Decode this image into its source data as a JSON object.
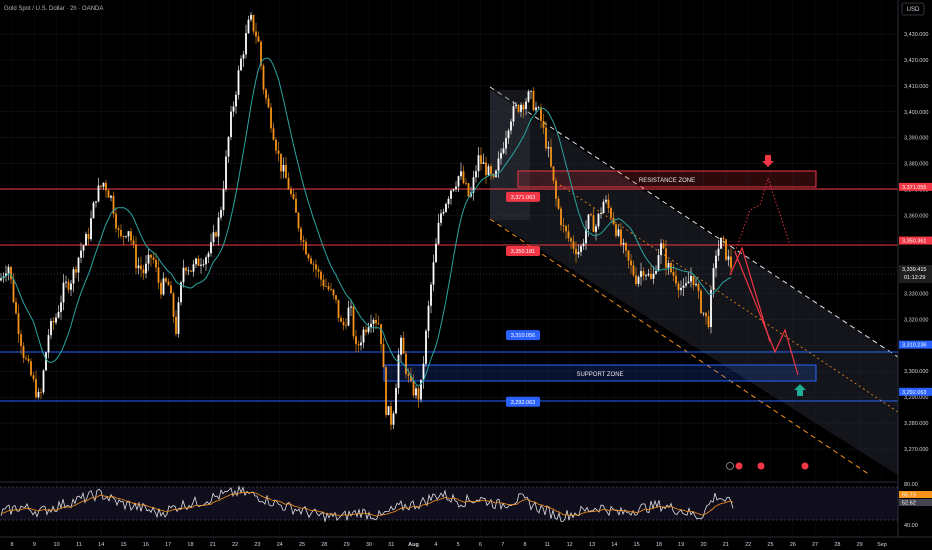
{
  "header": {
    "title": "Gold Spot / U.S. Dollar · 2h · OANDA",
    "currency_button": "USD"
  },
  "colors": {
    "background": "#000000",
    "candle_up": "#ffffff",
    "candle_down": "#f7931a",
    "ma_line": "#2aa5a0",
    "resistance_line": "#f23645",
    "support_line": "#2962ff",
    "channel_upper": "#e6e6e6",
    "channel_lower": "#f7931a",
    "projection": "#f23645",
    "rsi_line": "#e0e0e0",
    "rsi_signal": "#f7931a"
  },
  "chart_data": {
    "type": "candlestick",
    "symbol": "XAUUSD",
    "timeframe": "2h",
    "ylim": [
      3265,
      3440
    ],
    "y_ticks": [
      3270,
      3280,
      3290,
      3300,
      3310,
      3320,
      3330,
      3340,
      3350,
      3360,
      3370,
      3380,
      3390,
      3400,
      3410,
      3420,
      3430
    ],
    "y_tick_labels": [
      "3,270.000",
      "3,280.000",
      "3,290.000",
      "3,300.000",
      "3,310.000",
      "3,320.000",
      "3,330.000",
      "3,340.000",
      "3,350.000",
      "3,360.000",
      "3,370.000",
      "3,380.000",
      "3,390.000",
      "3,400.000",
      "3,410.000",
      "3,420.000",
      "3,430.000"
    ],
    "x_ticks": [
      "8",
      "9",
      "10",
      "11",
      "14",
      "15",
      "16",
      "17",
      "18",
      "21",
      "22",
      "23",
      "24",
      "25",
      "28",
      "29",
      "30",
      "31",
      "Aug",
      "4",
      "5",
      "6",
      "7",
      "8",
      "11",
      "12",
      "13",
      "14",
      "15",
      "18",
      "19",
      "20",
      "21",
      "22",
      "25",
      "26",
      "27",
      "28",
      "29",
      "Sep"
    ],
    "anchor_points": [
      [
        0,
        3335
      ],
      [
        8,
        3342
      ],
      [
        16,
        3322
      ],
      [
        24,
        3306
      ],
      [
        32,
        3297
      ],
      [
        40,
        3288
      ],
      [
        48,
        3314
      ],
      [
        56,
        3321
      ],
      [
        64,
        3332
      ],
      [
        72,
        3336
      ],
      [
        80,
        3346
      ],
      [
        88,
        3352
      ],
      [
        96,
        3368
      ],
      [
        104,
        3373
      ],
      [
        112,
        3366
      ],
      [
        120,
        3350
      ],
      [
        128,
        3356
      ],
      [
        136,
        3342
      ],
      [
        144,
        3338
      ],
      [
        152,
        3345
      ],
      [
        160,
        3332
      ],
      [
        168,
        3334
      ],
      [
        176,
        3316
      ],
      [
        184,
        3342
      ],
      [
        192,
        3339
      ],
      [
        200,
        3343
      ],
      [
        210,
        3346
      ],
      [
        220,
        3360
      ],
      [
        230,
        3395
      ],
      [
        240,
        3418
      ],
      [
        250,
        3436
      ],
      [
        258,
        3428
      ],
      [
        264,
        3408
      ],
      [
        272,
        3395
      ],
      [
        280,
        3380
      ],
      [
        288,
        3372
      ],
      [
        296,
        3360
      ],
      [
        304,
        3349
      ],
      [
        312,
        3343
      ],
      [
        320,
        3336
      ],
      [
        328,
        3332
      ],
      [
        336,
        3326
      ],
      [
        342,
        3316
      ],
      [
        350,
        3325
      ],
      [
        356,
        3308
      ],
      [
        364,
        3316
      ],
      [
        372,
        3322
      ],
      [
        380,
        3318
      ],
      [
        386,
        3286
      ],
      [
        392,
        3280
      ],
      [
        400,
        3312
      ],
      [
        410,
        3294
      ],
      [
        420,
        3290
      ],
      [
        430,
        3330
      ],
      [
        440,
        3360
      ],
      [
        450,
        3370
      ],
      [
        460,
        3376
      ],
      [
        470,
        3366
      ],
      [
        478,
        3382
      ],
      [
        486,
        3378
      ],
      [
        494,
        3372
      ],
      [
        502,
        3386
      ],
      [
        510,
        3398
      ],
      [
        520,
        3403
      ],
      [
        530,
        3406
      ],
      [
        540,
        3398
      ],
      [
        548,
        3385
      ],
      [
        556,
        3366
      ],
      [
        564,
        3354
      ],
      [
        572,
        3349
      ],
      [
        580,
        3346
      ],
      [
        588,
        3358
      ],
      [
        596,
        3356
      ],
      [
        604,
        3366
      ],
      [
        612,
        3360
      ],
      [
        620,
        3350
      ],
      [
        628,
        3342
      ],
      [
        636,
        3336
      ],
      [
        644,
        3340
      ],
      [
        652,
        3334
      ],
      [
        660,
        3349
      ],
      [
        668,
        3340
      ],
      [
        676,
        3336
      ],
      [
        684,
        3330
      ],
      [
        692,
        3338
      ],
      [
        700,
        3326
      ],
      [
        708,
        3318
      ],
      [
        716,
        3346
      ],
      [
        722,
        3350
      ],
      [
        728,
        3343
      ],
      [
        733,
        3339
      ]
    ],
    "price_tags": [
      {
        "label": "3,371.055",
        "value": 3371.055,
        "color": "#f23645"
      },
      {
        "label": "3,350.361",
        "value": 3350.361,
        "color": "#f23645"
      },
      {
        "label": "3,339.415",
        "value": 3339.415,
        "color": "#1f1f1f",
        "sub": "01:12:29"
      },
      {
        "label": "3,310.236",
        "value": 3310.236,
        "color": "#2962ff"
      },
      {
        "label": "3,292.063",
        "value": 3292.063,
        "color": "#2962ff"
      }
    ],
    "inline_tags": [
      {
        "label": "3,371.063",
        "value": 3371.063,
        "color": "#f23645"
      },
      {
        "label": "3,350.181",
        "value": 3350.181,
        "color": "#f23645"
      },
      {
        "label": "3,310.056",
        "value": 3310.056,
        "color": "#2962ff"
      },
      {
        "label": "3,292.063",
        "value": 3292.063,
        "color": "#2962ff"
      }
    ],
    "resistance_zone": {
      "label": "RESISTANCE ZONE",
      "top": 3378,
      "bottom": 3371
    },
    "support_zone": {
      "label": "SUPPORT ZONE",
      "top": 3304,
      "bottom": 3298
    },
    "rsi": {
      "ylim": [
        40,
        80
      ],
      "tick_labels": [
        "80.00",
        "40.00"
      ],
      "value_labels": [
        "55.73",
        "52.62"
      ],
      "anchors": [
        [
          0,
          48
        ],
        [
          20,
          56
        ],
        [
          40,
          50
        ],
        [
          60,
          58
        ],
        [
          80,
          65
        ],
        [
          100,
          72
        ],
        [
          120,
          60
        ],
        [
          140,
          55
        ],
        [
          160,
          48
        ],
        [
          180,
          58
        ],
        [
          200,
          62
        ],
        [
          220,
          70
        ],
        [
          240,
          74
        ],
        [
          260,
          68
        ],
        [
          280,
          58
        ],
        [
          300,
          52
        ],
        [
          320,
          45
        ],
        [
          340,
          43
        ],
        [
          360,
          50
        ],
        [
          380,
          44
        ],
        [
          400,
          56
        ],
        [
          420,
          60
        ],
        [
          440,
          72
        ],
        [
          460,
          62
        ],
        [
          480,
          66
        ],
        [
          500,
          58
        ],
        [
          520,
          66
        ],
        [
          540,
          54
        ],
        [
          560,
          44
        ],
        [
          580,
          50
        ],
        [
          600,
          56
        ],
        [
          620,
          48
        ],
        [
          640,
          54
        ],
        [
          660,
          58
        ],
        [
          680,
          52
        ],
        [
          700,
          44
        ],
        [
          716,
          70
        ],
        [
          728,
          62
        ],
        [
          733,
          56
        ]
      ]
    }
  }
}
